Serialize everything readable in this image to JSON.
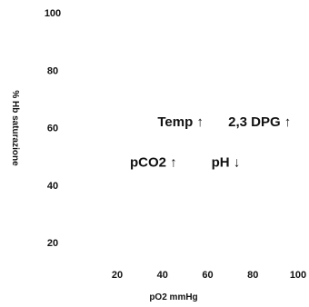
{
  "chart_data": {
    "type": "line",
    "title": "",
    "xlabel": "pO2 mmHg",
    "ylabel": "% Hb saturazione",
    "xticks": [
      20,
      40,
      60,
      80,
      100
    ],
    "yticks": [
      20,
      40,
      60,
      80,
      100
    ],
    "xlim": [
      10,
      104
    ],
    "ylim": [
      10,
      104
    ],
    "grid": false,
    "series": [],
    "annotations": [
      {
        "name": "temp",
        "text": "Temp ↑",
        "x": 48,
        "y": 62
      },
      {
        "name": "dpg",
        "text": "2,3 DPG ↑",
        "x": 83,
        "y": 62
      },
      {
        "name": "pco2",
        "text": "pCO2 ↑",
        "x": 36,
        "y": 48
      },
      {
        "name": "ph",
        "text": "pH ↓",
        "x": 68,
        "y": 48
      }
    ]
  }
}
